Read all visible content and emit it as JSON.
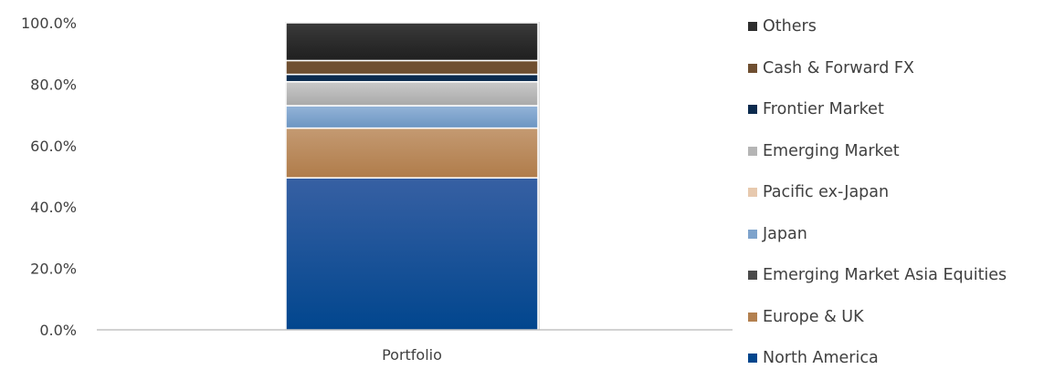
{
  "chart_data": {
    "type": "bar",
    "stacked": true,
    "categories": [
      "Portfolio"
    ],
    "ylim": [
      0,
      100
    ],
    "yticks": [
      "0.0%",
      "20.0%",
      "40.0%",
      "60.0%",
      "80.0%",
      "100.0%"
    ],
    "grid": false,
    "legend_position": "right",
    "series": [
      {
        "name": "North America",
        "values": [
          49.5
        ],
        "color": "#02468d"
      },
      {
        "name": "Europe & UK",
        "values": [
          16.2
        ],
        "color": "#b3804f"
      },
      {
        "name": "Emerging Market Asia Equities",
        "values": [
          0
        ],
        "color": "#4a4a4a"
      },
      {
        "name": "Japan",
        "values": [
          7.3
        ],
        "color": "#7ea3cc"
      },
      {
        "name": "Pacific ex-Japan",
        "values": [
          0
        ],
        "color": "#e7c9ae"
      },
      {
        "name": "Emerging Market",
        "values": [
          7.8
        ],
        "color": "#b5b5b5"
      },
      {
        "name": "Frontier Market",
        "values": [
          2.4
        ],
        "color": "#0b2a4e"
      },
      {
        "name": "Cash & Forward FX",
        "values": [
          4.5
        ],
        "color": "#6f4f31"
      },
      {
        "name": "Others",
        "values": [
          12.3
        ],
        "color": "#2e2e2e"
      }
    ]
  }
}
